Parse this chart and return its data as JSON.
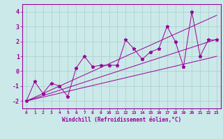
{
  "xlabel": "Windchill (Refroidissement éolien,°C)",
  "bg_color": "#cbe9e9",
  "line_color": "#990099",
  "grid_color": "#aacccc",
  "x_data": [
    0,
    1,
    2,
    3,
    4,
    5,
    6,
    7,
    8,
    9,
    10,
    11,
    12,
    13,
    14,
    15,
    16,
    17,
    18,
    19,
    20,
    21,
    22,
    23
  ],
  "y_main": [
    -2.0,
    -0.7,
    -1.5,
    -0.8,
    -1.0,
    -1.7,
    0.2,
    1.0,
    0.3,
    0.4,
    0.4,
    0.4,
    2.1,
    1.5,
    0.8,
    1.3,
    1.5,
    3.0,
    2.0,
    0.3,
    4.0,
    1.0,
    2.1,
    2.1
  ],
  "y_line1": [
    -2.0,
    -1.75,
    -1.5,
    -1.25,
    -1.0,
    -0.75,
    -0.5,
    -0.25,
    0.0,
    0.25,
    0.5,
    0.75,
    1.0,
    1.25,
    1.5,
    1.75,
    2.0,
    2.25,
    2.5,
    2.75,
    3.0,
    3.25,
    3.5,
    3.75
  ],
  "y_line2": [
    -2.0,
    -1.87,
    -1.74,
    -1.61,
    -1.48,
    -1.35,
    -1.22,
    -1.09,
    -0.96,
    -0.83,
    -0.7,
    -0.57,
    -0.44,
    -0.31,
    -0.18,
    -0.05,
    0.08,
    0.21,
    0.34,
    0.47,
    0.6,
    0.73,
    0.86,
    1.0
  ],
  "y_line3": [
    -2.0,
    -1.82,
    -1.64,
    -1.46,
    -1.28,
    -1.1,
    -0.92,
    -0.74,
    -0.56,
    -0.38,
    -0.2,
    -0.02,
    0.16,
    0.34,
    0.52,
    0.7,
    0.88,
    1.06,
    1.24,
    1.42,
    1.6,
    1.78,
    1.96,
    2.14
  ],
  "yticks": [
    -2,
    -1,
    0,
    1,
    2,
    3,
    4
  ],
  "ylim": [
    -2.5,
    4.5
  ],
  "xlim": [
    -0.5,
    23.5
  ]
}
